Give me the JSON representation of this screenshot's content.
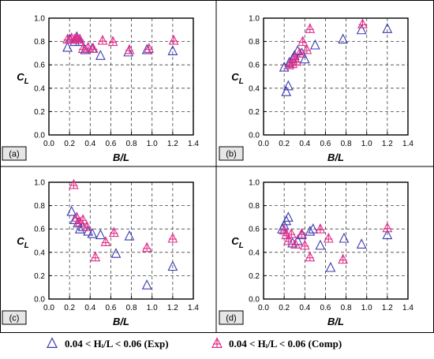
{
  "colors": {
    "exp": "#3a3ab0",
    "comp": "#e0308a",
    "grid": "#444444",
    "frame": "#000000"
  },
  "legend": [
    {
      "marker": "triangle",
      "color_key": "exp",
      "label": "0.04 < Hᵢ/L < 0.06 (Exp)"
    },
    {
      "marker": "triangle-cross",
      "color_key": "comp",
      "label": "0.04 < Hᵢ/L < 0.06 (Comp)"
    }
  ],
  "chart_data": [
    {
      "type": "scatter",
      "panel": "(a)",
      "xlabel": "B/L",
      "ylabel": "CL",
      "xlim": [
        0.0,
        1.4
      ],
      "ylim": [
        0.0,
        1.0
      ],
      "xticks": [
        "0.0",
        "0.2",
        "0.4",
        "0.6",
        "0.8",
        "1.0",
        "1.2",
        "1.4"
      ],
      "yticks": [
        "0.0",
        "0.2",
        "0.4",
        "0.6",
        "0.8",
        "1.0"
      ],
      "grid": true,
      "series": [
        {
          "key": "exp",
          "points": [
            [
              0.18,
              0.75
            ],
            [
              0.2,
              0.82
            ],
            [
              0.25,
              0.8
            ],
            [
              0.27,
              0.84
            ],
            [
              0.3,
              0.8
            ],
            [
              0.35,
              0.73
            ],
            [
              0.42,
              0.74
            ],
            [
              0.5,
              0.68
            ],
            [
              0.77,
              0.71
            ],
            [
              0.95,
              0.73
            ],
            [
              1.2,
              0.72
            ]
          ]
        },
        {
          "key": "comp",
          "points": [
            [
              0.18,
              0.82
            ],
            [
              0.22,
              0.83
            ],
            [
              0.25,
              0.82
            ],
            [
              0.27,
              0.82
            ],
            [
              0.28,
              0.82
            ],
            [
              0.3,
              0.82
            ],
            [
              0.33,
              0.74
            ],
            [
              0.38,
              0.75
            ],
            [
              0.43,
              0.74
            ],
            [
              0.52,
              0.81
            ],
            [
              0.62,
              0.8
            ],
            [
              0.78,
              0.73
            ],
            [
              0.97,
              0.74
            ],
            [
              1.21,
              0.81
            ]
          ]
        }
      ]
    },
    {
      "type": "scatter",
      "panel": "(b)",
      "xlabel": "B/L",
      "ylabel": "CL",
      "xlim": [
        0.0,
        1.4
      ],
      "ylim": [
        0.0,
        1.0
      ],
      "xticks": [
        "0.0",
        "0.2",
        "0.4",
        "0.6",
        "0.8",
        "1.0",
        "1.2",
        "1.4"
      ],
      "yticks": [
        "0.0",
        "0.2",
        "0.4",
        "0.6",
        "0.8",
        "1.0"
      ],
      "grid": true,
      "series": [
        {
          "key": "exp",
          "points": [
            [
              0.2,
              0.58
            ],
            [
              0.22,
              0.37
            ],
            [
              0.24,
              0.42
            ],
            [
              0.25,
              0.62
            ],
            [
              0.28,
              0.65
            ],
            [
              0.3,
              0.68
            ],
            [
              0.33,
              0.72
            ],
            [
              0.37,
              0.7
            ],
            [
              0.4,
              0.65
            ],
            [
              0.5,
              0.77
            ],
            [
              0.77,
              0.82
            ],
            [
              0.95,
              0.9
            ],
            [
              1.2,
              0.91
            ]
          ]
        },
        {
          "key": "comp",
          "points": [
            [
              0.25,
              0.6
            ],
            [
              0.28,
              0.61
            ],
            [
              0.3,
              0.66
            ],
            [
              0.32,
              0.63
            ],
            [
              0.35,
              0.7
            ],
            [
              0.38,
              0.8
            ],
            [
              0.42,
              0.73
            ],
            [
              0.45,
              0.91
            ],
            [
              0.96,
              0.95
            ]
          ]
        }
      ]
    },
    {
      "type": "scatter",
      "panel": "(c)",
      "xlabel": "B/L",
      "ylabel": "CL",
      "xlim": [
        0.0,
        1.4
      ],
      "ylim": [
        0.0,
        1.0
      ],
      "xticks": [
        "0.0",
        "0.2",
        "0.4",
        "0.6",
        "0.8",
        "1.0",
        "1.2",
        "1.4"
      ],
      "yticks": [
        "0.0",
        "0.2",
        "0.4",
        "0.6",
        "0.8",
        "1.0"
      ],
      "grid": true,
      "series": [
        {
          "key": "exp",
          "points": [
            [
              0.22,
              0.75
            ],
            [
              0.25,
              0.68
            ],
            [
              0.28,
              0.65
            ],
            [
              0.3,
              0.6
            ],
            [
              0.33,
              0.62
            ],
            [
              0.38,
              0.58
            ],
            [
              0.42,
              0.56
            ],
            [
              0.5,
              0.55
            ],
            [
              0.65,
              0.39
            ],
            [
              0.78,
              0.54
            ],
            [
              0.95,
              0.12
            ],
            [
              1.2,
              0.28
            ]
          ]
        },
        {
          "key": "comp",
          "points": [
            [
              0.24,
              0.98
            ],
            [
              0.27,
              0.7
            ],
            [
              0.3,
              0.66
            ],
            [
              0.33,
              0.68
            ],
            [
              0.37,
              0.62
            ],
            [
              0.45,
              0.36
            ],
            [
              0.55,
              0.49
            ],
            [
              0.63,
              0.57
            ],
            [
              0.95,
              0.44
            ],
            [
              1.2,
              0.52
            ]
          ]
        }
      ]
    },
    {
      "type": "scatter",
      "panel": "(d)",
      "xlabel": "B/L",
      "ylabel": "CL",
      "xlim": [
        0.0,
        1.4
      ],
      "ylim": [
        0.0,
        1.0
      ],
      "xticks": [
        "0.0",
        "0.2",
        "0.4",
        "0.6",
        "0.8",
        "1.0",
        "1.2",
        "1.4"
      ],
      "yticks": [
        "0.0",
        "0.2",
        "0.4",
        "0.6",
        "0.8",
        "1.0"
      ],
      "grid": true,
      "series": [
        {
          "key": "exp",
          "points": [
            [
              0.18,
              0.6
            ],
            [
              0.2,
              0.63
            ],
            [
              0.22,
              0.67
            ],
            [
              0.24,
              0.7
            ],
            [
              0.28,
              0.48
            ],
            [
              0.33,
              0.5
            ],
            [
              0.37,
              0.55
            ],
            [
              0.45,
              0.58
            ],
            [
              0.48,
              0.6
            ],
            [
              0.55,
              0.46
            ],
            [
              0.65,
              0.27
            ],
            [
              0.78,
              0.52
            ],
            [
              0.95,
              0.47
            ],
            [
              1.2,
              0.55
            ]
          ]
        },
        {
          "key": "comp",
          "points": [
            [
              0.2,
              0.59
            ],
            [
              0.22,
              0.55
            ],
            [
              0.24,
              0.5
            ],
            [
              0.27,
              0.56
            ],
            [
              0.31,
              0.47
            ],
            [
              0.37,
              0.56
            ],
            [
              0.4,
              0.46
            ],
            [
              0.45,
              0.36
            ],
            [
              0.55,
              0.6
            ],
            [
              0.63,
              0.52
            ],
            [
              0.77,
              0.34
            ],
            [
              1.2,
              0.61
            ]
          ]
        }
      ]
    }
  ]
}
